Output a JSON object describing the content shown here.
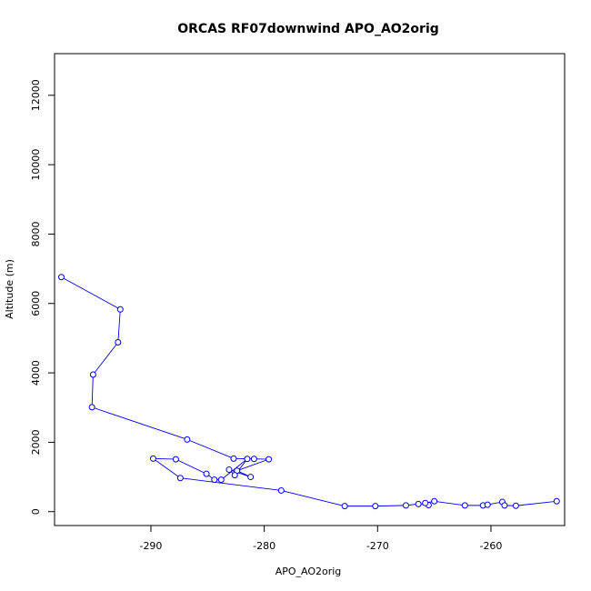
{
  "chart_data": {
    "type": "line",
    "title": "ORCAS RF07downwind APO_AO2orig",
    "xlabel": "APO_AO2orig",
    "ylabel": "Altitude (m)",
    "xlim": [
      -298.5,
      -253.5
    ],
    "ylim": [
      -400,
      13200
    ],
    "xticks": [
      -290,
      -280,
      -270,
      -260
    ],
    "yticks": [
      0,
      2000,
      4000,
      6000,
      8000,
      10000,
      12000
    ],
    "series_color": "#0000ff",
    "grid": false,
    "series": [
      {
        "marker": "open-circle",
        "x": [
          -297.9,
          -292.7,
          -292.9,
          -295.1,
          -295.2,
          -286.8,
          -282.7,
          -280.9,
          -279.6,
          -282.4,
          -281.2,
          -283.1,
          -282.6,
          -281.5,
          -283.8,
          -284.4,
          -285.1,
          -287.8,
          -289.8,
          -287.4,
          -278.5,
          -272.9,
          -270.2,
          -267.5,
          -266.4,
          -265.5,
          -265.8,
          -265.0,
          -262.3,
          -260.7,
          -260.3,
          -259.0,
          -258.8,
          -257.8,
          -254.2
        ],
        "y": [
          6760,
          5830,
          4880,
          3950,
          3010,
          2080,
          1530,
          1520,
          1510,
          1180,
          1000,
          1210,
          1050,
          1520,
          920,
          920,
          1090,
          1510,
          1530,
          970,
          610,
          160,
          160,
          180,
          220,
          190,
          250,
          300,
          180,
          180,
          200,
          280,
          180,
          170,
          300
        ]
      }
    ]
  }
}
